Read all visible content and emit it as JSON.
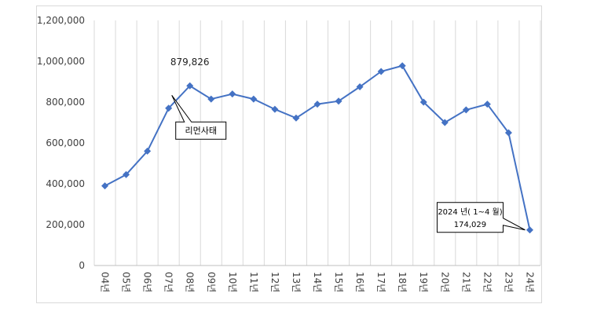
{
  "chart_data": {
    "type": "line",
    "categories": [
      "04년",
      "05년",
      "06년",
      "07년",
      "08년",
      "09년",
      "10년",
      "11년",
      "12년",
      "13년",
      "14년",
      "15년",
      "16년",
      "17년",
      "18년",
      "19년",
      "20년",
      "21년",
      "22년",
      "23년",
      "24년"
    ],
    "series": [
      {
        "values": [
          390000,
          445000,
          560000,
          770000,
          879826,
          815000,
          840000,
          815000,
          765000,
          722000,
          790000,
          805000,
          875000,
          950000,
          978000,
          800000,
          700000,
          762000,
          790000,
          650000,
          174029
        ],
        "color": "#4472c4",
        "marker": "diamond"
      }
    ],
    "yticks": [
      "0",
      "200,000",
      "400,000",
      "600,000",
      "800,000",
      "1,000,000",
      "1,200,000"
    ],
    "ylim": [
      0,
      1200000
    ],
    "grid": "vertical",
    "title": "",
    "xlabel": "",
    "ylabel": "",
    "annotations": [
      {
        "text": "879,826",
        "category_index": 4,
        "style": "plain"
      },
      {
        "text": "리먼사태",
        "category_index": 4,
        "style": "callout"
      },
      {
        "text": "2024 년( 1~4 월)",
        "text2": "174,029",
        "category_index": 20,
        "style": "callout"
      }
    ]
  }
}
